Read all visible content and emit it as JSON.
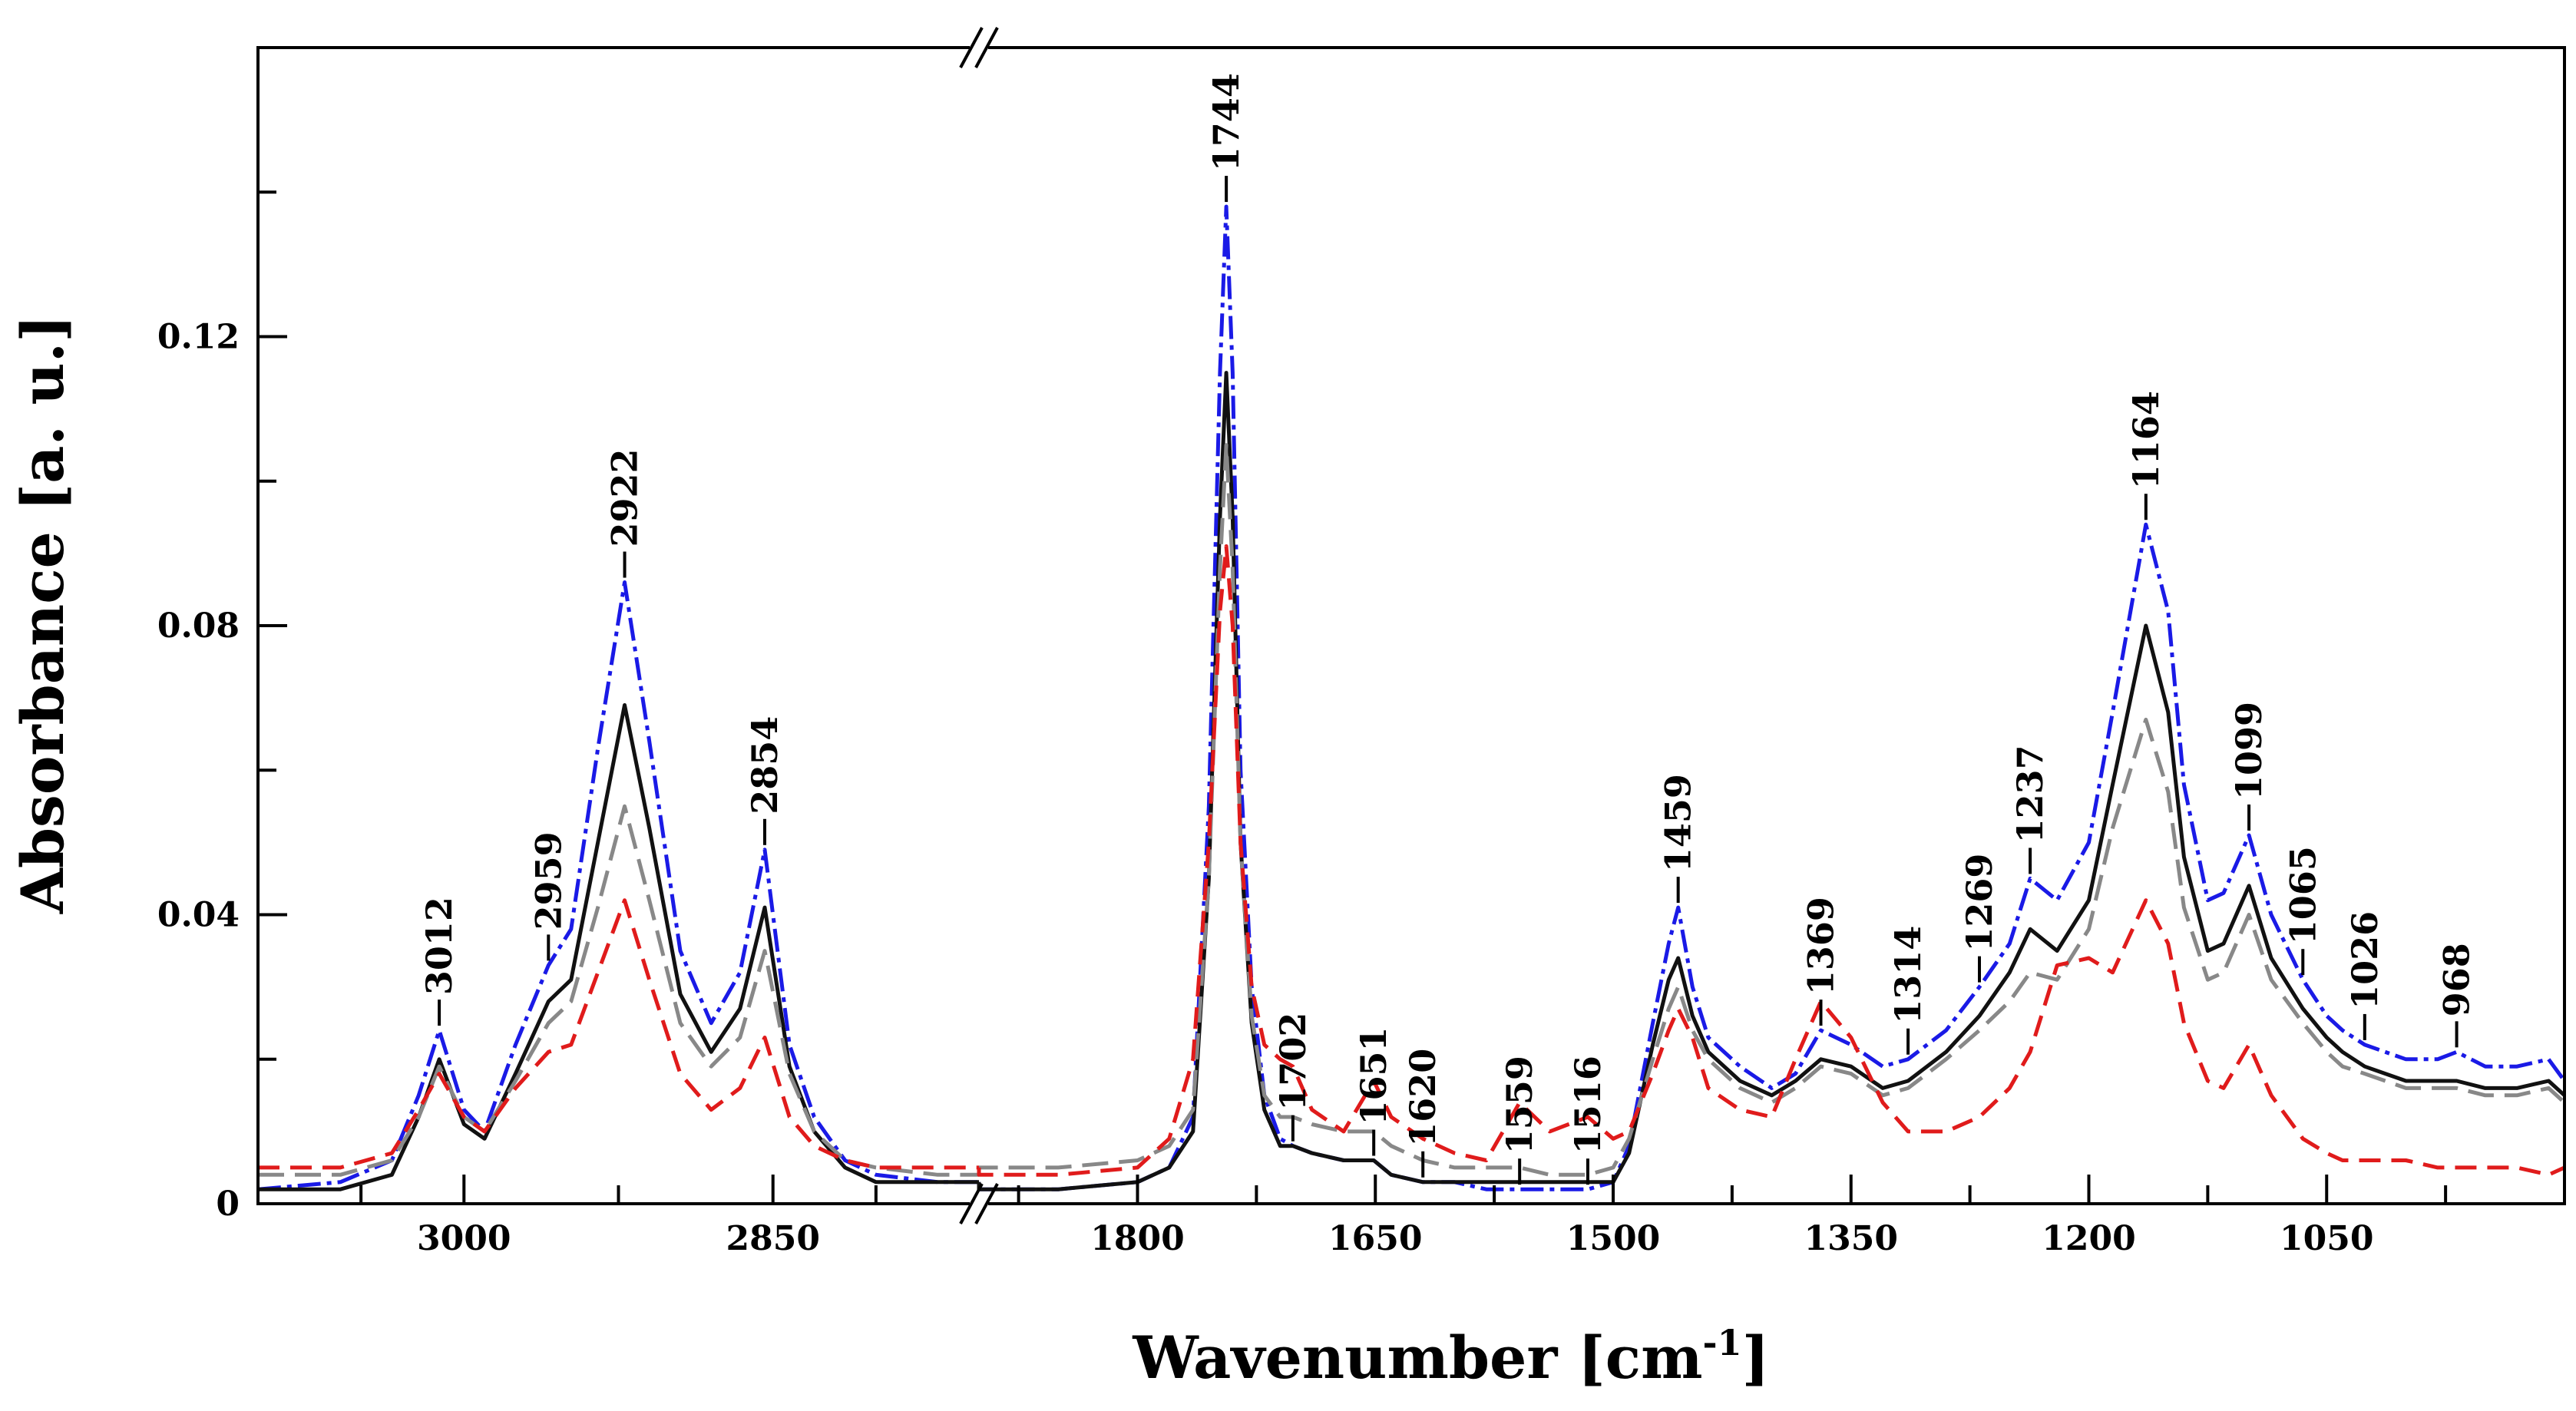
{
  "chart_data": {
    "type": "line",
    "title": "",
    "xlabel": "Wavenumber [cm",
    "xlabel_sup": "-1",
    "xlabel_end": "]",
    "ylabel": "Absorbance [a. u.]",
    "x_reversed": true,
    "x_segments": [
      [
        3100,
        2750
      ],
      [
        1900,
        900
      ]
    ],
    "ylim": [
      0,
      0.16
    ],
    "grid": false,
    "x_tick_labels": [
      "3000",
      "2850",
      "1800",
      "1650",
      "1500",
      "1350",
      "1200",
      "1050"
    ],
    "y_tick_labels": [
      "0",
      "0.04",
      "0.08",
      "0.12"
    ],
    "peak_labels": [
      "3012",
      "2959",
      "2922",
      "2854",
      "1744",
      "1702",
      "1651",
      "1620",
      "1559",
      "1516",
      "1459",
      "1369",
      "1314",
      "1269",
      "1237",
      "1164",
      "1099",
      "1065",
      "1026",
      "968"
    ],
    "series": [
      {
        "name": "blue (dash-dot)",
        "color": "#1a1ae6",
        "dash": "30 8 6 8",
        "x": [
          3100,
          3060,
          3035,
          3022,
          3012,
          3000,
          2990,
          2975,
          2959,
          2948,
          2935,
          2922,
          2910,
          2895,
          2880,
          2866,
          2854,
          2842,
          2830,
          2815,
          2800,
          2770,
          2750,
          1900,
          1850,
          1800,
          1780,
          1765,
          1755,
          1748,
          1744,
          1740,
          1735,
          1728,
          1720,
          1710,
          1702,
          1690,
          1670,
          1651,
          1640,
          1620,
          1600,
          1580,
          1559,
          1540,
          1516,
          1500,
          1490,
          1475,
          1465,
          1459,
          1450,
          1440,
          1420,
          1400,
          1385,
          1369,
          1350,
          1330,
          1314,
          1290,
          1269,
          1250,
          1237,
          1220,
          1200,
          1185,
          1164,
          1150,
          1140,
          1125,
          1115,
          1099,
          1085,
          1065,
          1050,
          1040,
          1026,
          1000,
          980,
          968,
          950,
          930,
          910,
          900
        ],
        "y": [
          0.002,
          0.003,
          0.006,
          0.015,
          0.024,
          0.013,
          0.01,
          0.022,
          0.033,
          0.038,
          0.063,
          0.086,
          0.064,
          0.035,
          0.025,
          0.032,
          0.049,
          0.022,
          0.012,
          0.006,
          0.004,
          0.003,
          0.003,
          0.002,
          0.002,
          0.003,
          0.005,
          0.012,
          0.055,
          0.115,
          0.138,
          0.115,
          0.06,
          0.03,
          0.015,
          0.009,
          0.008,
          0.007,
          0.006,
          0.006,
          0.004,
          0.003,
          0.003,
          0.002,
          0.002,
          0.002,
          0.002,
          0.003,
          0.008,
          0.025,
          0.036,
          0.041,
          0.03,
          0.023,
          0.019,
          0.016,
          0.018,
          0.024,
          0.022,
          0.019,
          0.02,
          0.024,
          0.03,
          0.036,
          0.045,
          0.042,
          0.05,
          0.068,
          0.094,
          0.082,
          0.058,
          0.042,
          0.043,
          0.051,
          0.04,
          0.031,
          0.026,
          0.024,
          0.022,
          0.02,
          0.02,
          0.021,
          0.019,
          0.019,
          0.02,
          0.017
        ]
      },
      {
        "name": "black (solid)",
        "color": "#111111",
        "dash": "",
        "x": [
          3100,
          3060,
          3035,
          3022,
          3012,
          3000,
          2990,
          2975,
          2959,
          2948,
          2935,
          2922,
          2910,
          2895,
          2880,
          2866,
          2854,
          2842,
          2830,
          2815,
          2800,
          2770,
          2750,
          1900,
          1850,
          1800,
          1780,
          1765,
          1755,
          1748,
          1744,
          1740,
          1735,
          1728,
          1720,
          1710,
          1702,
          1690,
          1670,
          1651,
          1640,
          1620,
          1600,
          1580,
          1559,
          1540,
          1516,
          1500,
          1490,
          1475,
          1465,
          1459,
          1450,
          1440,
          1420,
          1400,
          1385,
          1369,
          1350,
          1330,
          1314,
          1290,
          1269,
          1250,
          1237,
          1220,
          1200,
          1185,
          1164,
          1150,
          1140,
          1125,
          1115,
          1099,
          1085,
          1065,
          1050,
          1040,
          1026,
          1000,
          980,
          968,
          950,
          930,
          910,
          900
        ],
        "y": [
          0.002,
          0.002,
          0.004,
          0.012,
          0.02,
          0.011,
          0.009,
          0.018,
          0.028,
          0.031,
          0.05,
          0.069,
          0.052,
          0.029,
          0.021,
          0.027,
          0.041,
          0.019,
          0.01,
          0.005,
          0.003,
          0.003,
          0.003,
          0.002,
          0.002,
          0.003,
          0.005,
          0.01,
          0.045,
          0.095,
          0.115,
          0.095,
          0.05,
          0.025,
          0.013,
          0.008,
          0.008,
          0.007,
          0.006,
          0.006,
          0.004,
          0.003,
          0.003,
          0.003,
          0.003,
          0.003,
          0.003,
          0.003,
          0.007,
          0.022,
          0.031,
          0.034,
          0.026,
          0.021,
          0.017,
          0.015,
          0.017,
          0.02,
          0.019,
          0.016,
          0.017,
          0.021,
          0.026,
          0.032,
          0.038,
          0.035,
          0.042,
          0.058,
          0.08,
          0.068,
          0.048,
          0.035,
          0.036,
          0.044,
          0.034,
          0.027,
          0.023,
          0.021,
          0.019,
          0.017,
          0.017,
          0.017,
          0.016,
          0.016,
          0.017,
          0.015
        ]
      },
      {
        "name": "grey (dashed)",
        "color": "#888888",
        "dash": "34 14",
        "x": [
          3100,
          3060,
          3035,
          3022,
          3012,
          3000,
          2990,
          2975,
          2959,
          2948,
          2935,
          2922,
          2910,
          2895,
          2880,
          2866,
          2854,
          2842,
          2830,
          2815,
          2800,
          2770,
          2750,
          1900,
          1850,
          1800,
          1780,
          1765,
          1755,
          1748,
          1744,
          1740,
          1735,
          1728,
          1720,
          1710,
          1702,
          1690,
          1670,
          1651,
          1640,
          1620,
          1600,
          1580,
          1559,
          1540,
          1516,
          1500,
          1490,
          1475,
          1465,
          1459,
          1450,
          1440,
          1420,
          1400,
          1385,
          1369,
          1350,
          1330,
          1314,
          1290,
          1269,
          1250,
          1237,
          1220,
          1200,
          1185,
          1164,
          1150,
          1140,
          1125,
          1115,
          1099,
          1085,
          1065,
          1050,
          1040,
          1026,
          1000,
          980,
          968,
          950,
          930,
          910,
          900
        ],
        "y": [
          0.004,
          0.004,
          0.006,
          0.012,
          0.019,
          0.012,
          0.01,
          0.017,
          0.025,
          0.028,
          0.041,
          0.055,
          0.042,
          0.025,
          0.019,
          0.023,
          0.035,
          0.018,
          0.01,
          0.006,
          0.005,
          0.004,
          0.004,
          0.005,
          0.005,
          0.006,
          0.008,
          0.013,
          0.045,
          0.088,
          0.105,
          0.088,
          0.05,
          0.026,
          0.015,
          0.012,
          0.012,
          0.011,
          0.01,
          0.01,
          0.008,
          0.006,
          0.005,
          0.005,
          0.005,
          0.004,
          0.004,
          0.005,
          0.009,
          0.02,
          0.027,
          0.03,
          0.024,
          0.02,
          0.016,
          0.014,
          0.016,
          0.019,
          0.018,
          0.015,
          0.016,
          0.02,
          0.024,
          0.028,
          0.032,
          0.031,
          0.038,
          0.052,
          0.067,
          0.057,
          0.041,
          0.031,
          0.032,
          0.04,
          0.031,
          0.025,
          0.021,
          0.019,
          0.018,
          0.016,
          0.016,
          0.016,
          0.015,
          0.015,
          0.016,
          0.014
        ]
      },
      {
        "name": "red (dashed)",
        "color": "#e01b1b",
        "dash": "28 14",
        "x": [
          3100,
          3060,
          3035,
          3022,
          3012,
          3000,
          2990,
          2975,
          2959,
          2948,
          2935,
          2922,
          2910,
          2895,
          2880,
          2866,
          2854,
          2842,
          2830,
          2815,
          2800,
          2770,
          2750,
          1900,
          1850,
          1800,
          1780,
          1765,
          1755,
          1748,
          1744,
          1740,
          1735,
          1728,
          1720,
          1710,
          1702,
          1690,
          1670,
          1651,
          1640,
          1620,
          1600,
          1580,
          1559,
          1540,
          1516,
          1500,
          1490,
          1475,
          1465,
          1459,
          1450,
          1440,
          1420,
          1400,
          1385,
          1369,
          1350,
          1330,
          1314,
          1290,
          1269,
          1250,
          1237,
          1220,
          1200,
          1185,
          1164,
          1150,
          1140,
          1125,
          1115,
          1099,
          1085,
          1065,
          1050,
          1040,
          1026,
          1000,
          980,
          968,
          950,
          930,
          910,
          900
        ],
        "y": [
          0.005,
          0.005,
          0.007,
          0.013,
          0.018,
          0.012,
          0.01,
          0.016,
          0.021,
          0.022,
          0.032,
          0.042,
          0.031,
          0.018,
          0.013,
          0.016,
          0.023,
          0.012,
          0.008,
          0.006,
          0.005,
          0.005,
          0.005,
          0.004,
          0.004,
          0.005,
          0.009,
          0.02,
          0.05,
          0.082,
          0.091,
          0.08,
          0.05,
          0.03,
          0.022,
          0.02,
          0.019,
          0.013,
          0.01,
          0.017,
          0.012,
          0.009,
          0.007,
          0.006,
          0.014,
          0.01,
          0.012,
          0.009,
          0.01,
          0.018,
          0.024,
          0.027,
          0.023,
          0.016,
          0.013,
          0.012,
          0.02,
          0.028,
          0.023,
          0.014,
          0.01,
          0.01,
          0.012,
          0.016,
          0.021,
          0.033,
          0.034,
          0.032,
          0.042,
          0.036,
          0.025,
          0.017,
          0.016,
          0.022,
          0.015,
          0.009,
          0.007,
          0.006,
          0.006,
          0.006,
          0.005,
          0.005,
          0.005,
          0.005,
          0.004,
          0.005
        ]
      }
    ]
  }
}
